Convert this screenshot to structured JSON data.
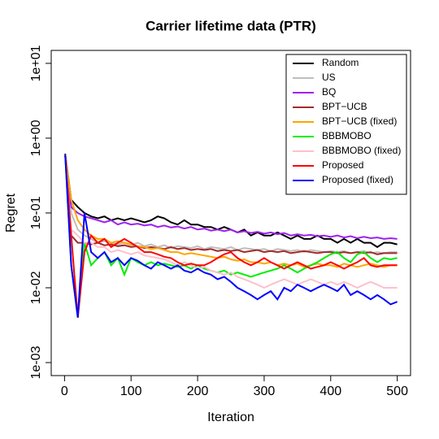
{
  "chart_data": {
    "type": "line",
    "title": "Carrier lifetime data (PTR)",
    "x_label": "Iteration",
    "y_label": "Regret",
    "log_y": true,
    "legend": "topright",
    "xlim": [
      -20,
      520
    ],
    "xticks": [
      0,
      100,
      200,
      300,
      400,
      500
    ],
    "ylim": [
      0.00067,
      14.9
    ],
    "yticks": [
      {
        "value": 0.001,
        "label": "1e-03"
      },
      {
        "value": 0.01,
        "label": "1e-02"
      },
      {
        "value": 0.1,
        "label": "1e-01"
      },
      {
        "value": 1,
        "label": "1e+00"
      },
      {
        "value": 10,
        "label": "1e+01"
      }
    ],
    "x": [
      1,
      10,
      20,
      30,
      40,
      50,
      60,
      70,
      80,
      90,
      100,
      110,
      120,
      130,
      140,
      150,
      160,
      170,
      180,
      190,
      200,
      210,
      220,
      230,
      240,
      250,
      260,
      270,
      280,
      290,
      300,
      310,
      320,
      330,
      340,
      350,
      360,
      370,
      380,
      390,
      400,
      410,
      420,
      430,
      440,
      450,
      460,
      470,
      480,
      490,
      500
    ],
    "series": [
      {
        "name": "Random",
        "color": "#000000",
        "values": [
          0.62,
          0.15,
          0.12,
          0.1,
          0.09,
          0.085,
          0.09,
          0.08,
          0.085,
          0.08,
          0.085,
          0.08,
          0.075,
          0.08,
          0.09,
          0.085,
          0.075,
          0.07,
          0.08,
          0.07,
          0.07,
          0.065,
          0.065,
          0.06,
          0.065,
          0.06,
          0.055,
          0.06,
          0.05,
          0.055,
          0.05,
          0.05,
          0.055,
          0.05,
          0.045,
          0.05,
          0.045,
          0.045,
          0.05,
          0.045,
          0.045,
          0.04,
          0.045,
          0.04,
          0.045,
          0.04,
          0.04,
          0.035,
          0.04,
          0.04,
          0.038
        ]
      },
      {
        "name": "US",
        "color": "#bebebe",
        "values": [
          0.6,
          0.1,
          0.06,
          0.05,
          0.045,
          0.04,
          0.042,
          0.04,
          0.038,
          0.04,
          0.037,
          0.04,
          0.036,
          0.038,
          0.035,
          0.037,
          0.034,
          0.036,
          0.035,
          0.034,
          0.036,
          0.033,
          0.035,
          0.034,
          0.033,
          0.035,
          0.032,
          0.034,
          0.033,
          0.032,
          0.033,
          0.031,
          0.033,
          0.032,
          0.031,
          0.032,
          0.03,
          0.032,
          0.031,
          0.03,
          0.031,
          0.03,
          0.031,
          0.029,
          0.03,
          0.031,
          0.029,
          0.03,
          0.029,
          0.03,
          0.03
        ]
      },
      {
        "name": "BQ",
        "color": "#a020f0",
        "values": [
          0.6,
          0.12,
          0.1,
          0.09,
          0.085,
          0.08,
          0.075,
          0.08,
          0.07,
          0.075,
          0.07,
          0.072,
          0.068,
          0.07,
          0.065,
          0.068,
          0.064,
          0.066,
          0.062,
          0.065,
          0.06,
          0.062,
          0.058,
          0.06,
          0.057,
          0.06,
          0.055,
          0.057,
          0.054,
          0.056,
          0.053,
          0.055,
          0.052,
          0.054,
          0.05,
          0.052,
          0.05,
          0.051,
          0.049,
          0.05,
          0.048,
          0.05,
          0.047,
          0.049,
          0.046,
          0.048,
          0.046,
          0.047,
          0.045,
          0.046,
          0.045
        ]
      },
      {
        "name": "BPT−UCB",
        "color": "#a52a2a",
        "values": [
          0.6,
          0.05,
          0.04,
          0.04,
          0.038,
          0.04,
          0.037,
          0.038,
          0.036,
          0.037,
          0.035,
          0.036,
          0.034,
          0.035,
          0.034,
          0.033,
          0.035,
          0.033,
          0.034,
          0.032,
          0.033,
          0.032,
          0.033,
          0.031,
          0.032,
          0.031,
          0.032,
          0.03,
          0.031,
          0.032,
          0.03,
          0.031,
          0.03,
          0.031,
          0.029,
          0.03,
          0.031,
          0.03,
          0.029,
          0.03,
          0.03,
          0.029,
          0.03,
          0.029,
          0.03,
          0.029,
          0.03,
          0.028,
          0.029,
          0.029,
          0.029
        ]
      },
      {
        "name": "BPT−UCB (fixed)",
        "color": "#ffa500",
        "values": [
          0.6,
          0.15,
          0.08,
          0.06,
          0.05,
          0.045,
          0.045,
          0.04,
          0.042,
          0.04,
          0.038,
          0.036,
          0.035,
          0.033,
          0.034,
          0.032,
          0.03,
          0.03,
          0.028,
          0.029,
          0.028,
          0.027,
          0.026,
          0.025,
          0.026,
          0.024,
          0.023,
          0.024,
          0.022,
          0.022,
          0.021,
          0.022,
          0.02,
          0.021,
          0.02,
          0.021,
          0.019,
          0.02,
          0.021,
          0.02,
          0.02,
          0.019,
          0.021,
          0.02,
          0.019,
          0.02,
          0.021,
          0.02,
          0.019,
          0.02,
          0.02
        ]
      },
      {
        "name": "BBBMOBO",
        "color": "#00ee00",
        "values": [
          0.6,
          0.02,
          0.004,
          0.04,
          0.02,
          0.025,
          0.03,
          0.02,
          0.025,
          0.015,
          0.025,
          0.022,
          0.02,
          0.022,
          0.02,
          0.021,
          0.02,
          0.019,
          0.02,
          0.018,
          0.02,
          0.018,
          0.017,
          0.016,
          0.017,
          0.015,
          0.016,
          0.015,
          0.014,
          0.015,
          0.016,
          0.017,
          0.018,
          0.02,
          0.018,
          0.016,
          0.018,
          0.02,
          0.022,
          0.025,
          0.028,
          0.03,
          0.025,
          0.022,
          0.028,
          0.03,
          0.025,
          0.022,
          0.025,
          0.024,
          0.025
        ]
      },
      {
        "name": "BBBMOBO (fixed)",
        "color": "#ffc0cb",
        "values": [
          0.6,
          0.06,
          0.05,
          0.04,
          0.04,
          0.035,
          0.035,
          0.03,
          0.032,
          0.03,
          0.028,
          0.03,
          0.027,
          0.026,
          0.025,
          0.024,
          0.022,
          0.02,
          0.022,
          0.02,
          0.018,
          0.019,
          0.017,
          0.016,
          0.015,
          0.016,
          0.014,
          0.013,
          0.012,
          0.011,
          0.01,
          0.011,
          0.012,
          0.013,
          0.012,
          0.011,
          0.012,
          0.013,
          0.012,
          0.011,
          0.012,
          0.011,
          0.012,
          0.011,
          0.01,
          0.011,
          0.012,
          0.011,
          0.01,
          0.01,
          0.01
        ]
      },
      {
        "name": "Proposed",
        "color": "#ff0000",
        "values": [
          0.6,
          0.05,
          0.004,
          0.03,
          0.05,
          0.04,
          0.045,
          0.035,
          0.04,
          0.045,
          0.04,
          0.035,
          0.03,
          0.03,
          0.028,
          0.026,
          0.025,
          0.022,
          0.02,
          0.021,
          0.02,
          0.02,
          0.022,
          0.025,
          0.028,
          0.03,
          0.025,
          0.022,
          0.02,
          0.022,
          0.025,
          0.022,
          0.02,
          0.018,
          0.02,
          0.022,
          0.02,
          0.018,
          0.019,
          0.02,
          0.022,
          0.02,
          0.018,
          0.02,
          0.022,
          0.025,
          0.02,
          0.019,
          0.02,
          0.02,
          0.02
        ]
      },
      {
        "name": "Proposed (fixed)",
        "color": "#0000ff",
        "values": [
          0.6,
          0.02,
          0.004,
          0.1,
          0.03,
          0.025,
          0.03,
          0.022,
          0.025,
          0.02,
          0.025,
          0.023,
          0.02,
          0.018,
          0.022,
          0.02,
          0.018,
          0.02,
          0.017,
          0.016,
          0.018,
          0.016,
          0.015,
          0.013,
          0.014,
          0.012,
          0.01,
          0.009,
          0.008,
          0.007,
          0.008,
          0.009,
          0.007,
          0.01,
          0.009,
          0.011,
          0.01,
          0.009,
          0.01,
          0.011,
          0.01,
          0.009,
          0.011,
          0.008,
          0.009,
          0.008,
          0.007,
          0.008,
          0.007,
          0.006,
          0.0065
        ]
      }
    ]
  }
}
